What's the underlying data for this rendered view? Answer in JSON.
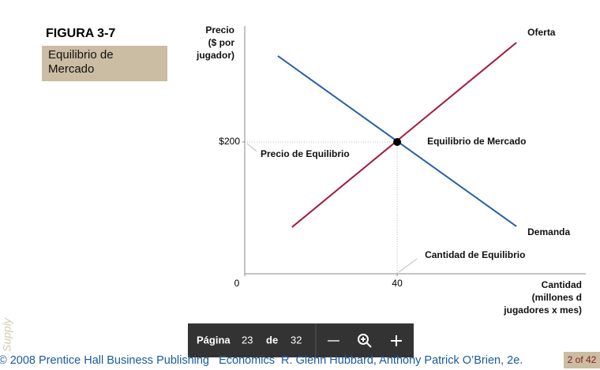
{
  "figure": {
    "number": "FIGURA 3-7",
    "caption": "Equilibrio de Mercado"
  },
  "chart_data": {
    "type": "line",
    "y_label": [
      "Precio",
      "($ por",
      "jugador)"
    ],
    "x_label": [
      "Cantidad",
      "(millones d",
      "jugadores x mes)"
    ],
    "xlim": [
      0,
      89.5
    ],
    "ylim": [
      0,
      376
    ],
    "xticks": [
      0,
      40
    ],
    "yticks": [
      {
        "value": 200,
        "label": "$200"
      }
    ],
    "series": [
      {
        "name": "Demanda",
        "color": "#2a5fa8",
        "x": [
          8.7,
          71.3
        ],
        "values": [
          330.5,
          71.9
        ]
      },
      {
        "name": "Oferta",
        "color": "#a31a3c",
        "x": [
          12.4,
          71.3
        ],
        "values": [
          70.7,
          350.9
        ]
      }
    ],
    "equilibrium": {
      "x": 40,
      "y": 200,
      "label": "Equilibrio de Mercado"
    },
    "annotations": [
      "Precio de Equilibrio",
      "Cantidad de Equilibrio"
    ]
  },
  "watermark": "Supply",
  "toolbar": {
    "page_label": "Página",
    "page": 23,
    "of": "de",
    "total": 32
  },
  "footer": {
    "credit": "© 2008 Prentice Hall Business Publishing   Economics  R. Glenn Hubbard, Anthony Patrick O’Brien, 2e.",
    "slide": "2 of 42"
  }
}
